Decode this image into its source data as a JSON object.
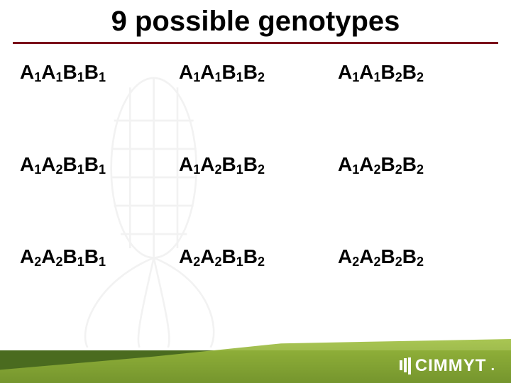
{
  "title": "9 possible genotypes",
  "title_color": "#000000",
  "rule_color": "#7a0019",
  "background_color": "#ffffff",
  "font_family": "Arial",
  "title_fontsize": 40,
  "cell_fontsize": 28,
  "cell_sub_fontsize": 18,
  "grid": {
    "rows": 3,
    "cols": 3,
    "cells": [
      [
        [
          [
            "A",
            "1"
          ],
          [
            "A",
            "1"
          ],
          [
            "B",
            "1"
          ],
          [
            "B",
            "1"
          ]
        ],
        [
          [
            "A",
            "1"
          ],
          [
            "A",
            "1"
          ],
          [
            "B",
            "1"
          ],
          [
            "B",
            "2"
          ]
        ],
        [
          [
            "A",
            "1"
          ],
          [
            "A",
            "1"
          ],
          [
            "B",
            "2"
          ],
          [
            "B",
            "2"
          ]
        ]
      ],
      [
        [
          [
            "A",
            "1"
          ],
          [
            "A",
            "2"
          ],
          [
            "B",
            "1"
          ],
          [
            "B",
            "1"
          ]
        ],
        [
          [
            "A",
            "1"
          ],
          [
            "A",
            "2"
          ],
          [
            "B",
            "1"
          ],
          [
            "B",
            "2"
          ]
        ],
        [
          [
            "A",
            "1"
          ],
          [
            "A",
            "2"
          ],
          [
            "B",
            "2"
          ],
          [
            "B",
            "2"
          ]
        ]
      ],
      [
        [
          [
            "A",
            "2"
          ],
          [
            "A",
            "2"
          ],
          [
            "B",
            "1"
          ],
          [
            "B",
            "1"
          ]
        ],
        [
          [
            "A",
            "2"
          ],
          [
            "A",
            "2"
          ],
          [
            "B",
            "1"
          ],
          [
            "B",
            "2"
          ]
        ],
        [
          [
            "A",
            "2"
          ],
          [
            "A",
            "2"
          ],
          [
            "B",
            "2"
          ],
          [
            "B",
            "2"
          ]
        ]
      ]
    ]
  },
  "footer": {
    "band_dark_color": "#4a6b1f",
    "band_light_from": "#9fbf3f",
    "band_light_to": "#7a9a2f",
    "logo_text": "CIMMYT",
    "logo_color": "#ffffff"
  },
  "watermark": {
    "opacity": 0.06,
    "stroke": "#333333"
  }
}
